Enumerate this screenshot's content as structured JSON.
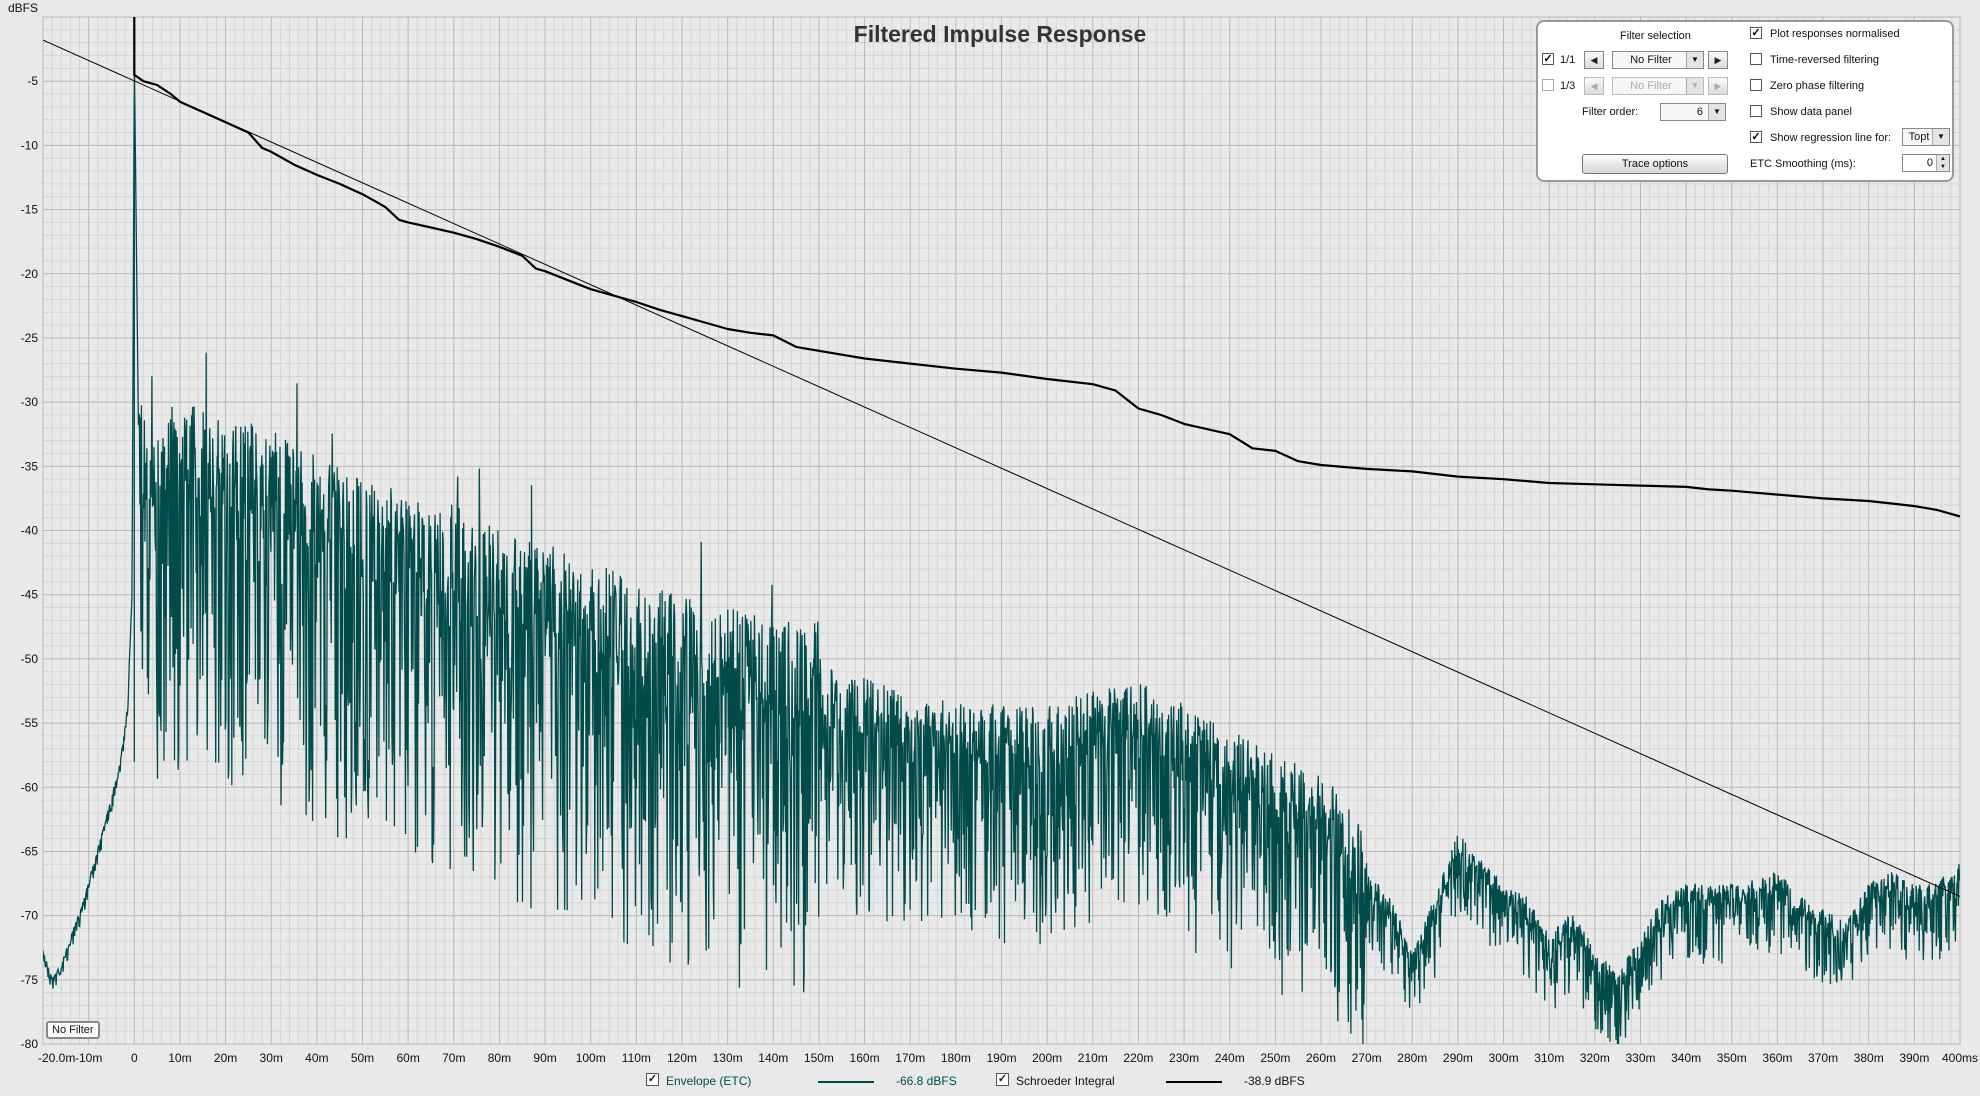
{
  "colors": {
    "envelope": "#024b4b",
    "schroeder": "#000000",
    "regression": "#000000",
    "background": "#e9e9e9",
    "grid_major": "#b9b9b9",
    "grid_minor": "#d6d6d6"
  },
  "legend": {
    "envelope_label": "Envelope (ETC)",
    "envelope_value": "-66.8 dBFS",
    "schroeder_label": "Schroeder Integral",
    "schroeder_value": "-38.9 dBFS"
  },
  "plot_tag": "No Filter",
  "control_panel": {
    "filter_selection_label": "Filter selection",
    "row1": {
      "checked": true,
      "label": "1/1",
      "value": "No Filter"
    },
    "row2": {
      "checked": false,
      "label": "1/3",
      "value": "No Filter"
    },
    "filter_order_label": "Filter order:",
    "filter_order_value": "6",
    "trace_options_label": "Trace options",
    "options": [
      {
        "label": "Plot responses normalised",
        "checked": true
      },
      {
        "label": "Time-reversed filtering",
        "checked": false
      },
      {
        "label": "Zero phase filtering",
        "checked": false
      },
      {
        "label": "Show data panel",
        "checked": false
      },
      {
        "label": "Show regression line for:",
        "checked": true
      }
    ],
    "regression_target": "Topt",
    "etc_smoothing_label": "ETC Smoothing (ms):",
    "etc_smoothing_value": "0"
  },
  "chart_data": {
    "type": "line",
    "title": "Filtered Impulse Response",
    "ylabel": "dBFS",
    "xlabel": "",
    "xlim": [
      -20,
      400
    ],
    "ylim": [
      -80,
      0
    ],
    "x_tick_labels": [
      "-20.0m",
      "-10m",
      "0",
      "10m",
      "20m",
      "30m",
      "40m",
      "50m",
      "60m",
      "70m",
      "80m",
      "90m",
      "100m",
      "110m",
      "120m",
      "130m",
      "140m",
      "150m",
      "160m",
      "170m",
      "180m",
      "190m",
      "200m",
      "210m",
      "220m",
      "230m",
      "240m",
      "250m",
      "260m",
      "270m",
      "280m",
      "290m",
      "300m",
      "310m",
      "320m",
      "330m",
      "340m",
      "350m",
      "360m",
      "370m",
      "380m",
      "390m",
      "400ms"
    ],
    "y_tick_labels": [
      "-5",
      "-10",
      "-15",
      "-20",
      "-25",
      "-30",
      "-35",
      "-40",
      "-45",
      "-50",
      "-55",
      "-60",
      "-65",
      "-70",
      "-75",
      "-80"
    ],
    "grid": true,
    "series": [
      {
        "name": "Schroeder Integral",
        "x": [
          0,
          2,
          5,
          8,
          10,
          15,
          20,
          25,
          28,
          30,
          35,
          40,
          45,
          50,
          55,
          58,
          60,
          65,
          70,
          75,
          80,
          85,
          88,
          90,
          95,
          100,
          110,
          115,
          120,
          125,
          130,
          135,
          140,
          145,
          150,
          160,
          170,
          180,
          190,
          200,
          210,
          215,
          220,
          225,
          230,
          240,
          245,
          250,
          255,
          260,
          270,
          280,
          290,
          300,
          310,
          320,
          330,
          340,
          345,
          350,
          360,
          370,
          380,
          385,
          390,
          395,
          400
        ],
        "y": [
          -4.5,
          -5.0,
          -5.3,
          -6.0,
          -6.6,
          -7.4,
          -8.2,
          -9.0,
          -10.2,
          -10.5,
          -11.5,
          -12.3,
          -13.0,
          -13.8,
          -14.8,
          -15.8,
          -16.0,
          -16.4,
          -16.8,
          -17.3,
          -17.9,
          -18.6,
          -19.6,
          -19.8,
          -20.5,
          -21.2,
          -22.2,
          -22.8,
          -23.3,
          -23.8,
          -24.3,
          -24.6,
          -24.8,
          -25.7,
          -26.0,
          -26.6,
          -27.0,
          -27.4,
          -27.7,
          -28.2,
          -28.6,
          -29.1,
          -30.5,
          -31.0,
          -31.7,
          -32.5,
          -33.6,
          -33.8,
          -34.6,
          -34.9,
          -35.2,
          -35.4,
          -35.8,
          -36.0,
          -36.3,
          -36.4,
          -36.5,
          -36.6,
          -36.8,
          -36.9,
          -37.2,
          -37.5,
          -37.7,
          -37.9,
          -38.1,
          -38.4,
          -38.9
        ]
      },
      {
        "name": "Envelope (ETC)",
        "x": [
          -20,
          -18,
          -16,
          -12,
          -8,
          -5,
          -3,
          -1.5,
          -0.5,
          0,
          1,
          2,
          5,
          10,
          20,
          30,
          40,
          50,
          60,
          70,
          80,
          90,
          100,
          110,
          120,
          130,
          140,
          150,
          160,
          170,
          180,
          190,
          200,
          210,
          220,
          230,
          240,
          250,
          260,
          270,
          275,
          280,
          285,
          290,
          295,
          300,
          305,
          310,
          315,
          320,
          325,
          330,
          335,
          340,
          350,
          360,
          365,
          370,
          375,
          380,
          385,
          390,
          395,
          400
        ],
        "y": [
          -73,
          -75,
          -74,
          -70,
          -65,
          -61,
          -58,
          -54,
          -45,
          -3,
          -35,
          -38,
          -38,
          -37,
          -38,
          -39,
          -41,
          -43,
          -44,
          -45,
          -47,
          -48,
          -49,
          -51,
          -52,
          -53,
          -54,
          -54,
          -56,
          -57,
          -58,
          -58,
          -58,
          -57,
          -56,
          -58,
          -60,
          -62,
          -63,
          -68,
          -70,
          -74,
          -70,
          -65,
          -67,
          -69,
          -70,
          -73,
          -71,
          -74,
          -76,
          -73,
          -70,
          -69,
          -69,
          -68,
          -70,
          -71,
          -72,
          -69,
          -68,
          -69,
          -69,
          -67
        ]
      },
      {
        "name": "Regression",
        "x": [
          -20,
          400
        ],
        "y": [
          -1.8,
          -68.5
        ]
      }
    ]
  }
}
